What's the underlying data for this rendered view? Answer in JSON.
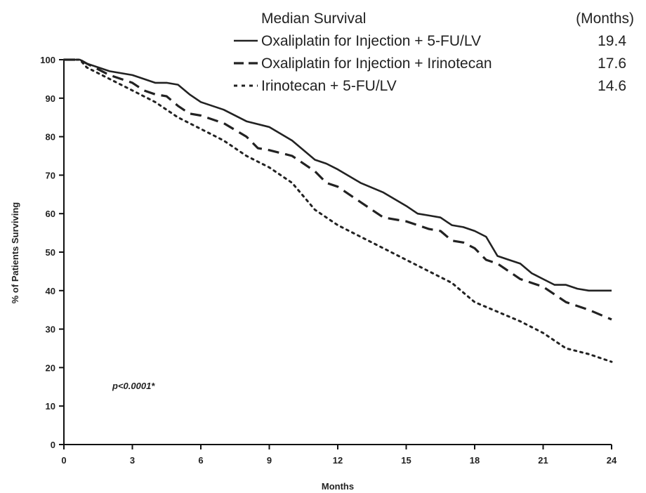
{
  "chart_data": {
    "type": "line",
    "xlabel": "Months",
    "ylabel": "% of Patients Surviving",
    "xlim": [
      0,
      24
    ],
    "ylim": [
      0,
      100
    ],
    "xticks": [
      0,
      3,
      6,
      9,
      12,
      15,
      18,
      21,
      24
    ],
    "yticks": [
      0,
      10,
      20,
      30,
      40,
      50,
      60,
      70,
      80,
      90,
      100
    ],
    "grid": false,
    "legend": {
      "title": "Median Survival",
      "value_header": "(Months)",
      "placement": "top-right"
    },
    "annotation": "p<0.0001*",
    "series": [
      {
        "name": "Oxaliplatin for Injection + 5-FU/LV",
        "median": "19.4",
        "style": "solid",
        "x": [
          0,
          0.7,
          1,
          2,
          3,
          3.5,
          4,
          4.5,
          5,
          5.5,
          6,
          7,
          8,
          9,
          10,
          11,
          11.5,
          12,
          13,
          14,
          15,
          15.5,
          16,
          16.5,
          17,
          17.5,
          18,
          18.5,
          19,
          19.5,
          20,
          20.5,
          21,
          21.5,
          22,
          22.5,
          23,
          23.5,
          24
        ],
        "y": [
          100,
          100,
          99,
          97,
          96,
          95,
          94,
          94,
          93.5,
          91,
          89,
          87,
          84,
          82.5,
          79,
          74,
          73,
          71.5,
          68,
          65.5,
          62,
          60,
          59.5,
          59,
          57,
          56.5,
          55.5,
          54,
          49,
          48,
          47,
          44.5,
          43,
          41.5,
          41.5,
          40.5,
          40,
          40,
          40
        ]
      },
      {
        "name": "Oxaliplatin for Injection + Irinotecan",
        "median": "17.6",
        "style": "dashed",
        "x": [
          0,
          0.7,
          1,
          2,
          3,
          3.5,
          4,
          4.5,
          5,
          5.5,
          6,
          7,
          8,
          8.5,
          9,
          10,
          11,
          11.5,
          12,
          13,
          14,
          15,
          15.5,
          16,
          16.5,
          17,
          17.5,
          18,
          18.5,
          19,
          19.5,
          20,
          21,
          22,
          23,
          24
        ],
        "y": [
          100,
          100,
          99,
          96,
          94,
          92,
          91,
          90.5,
          88,
          86,
          85.5,
          83.5,
          80,
          77,
          76.5,
          75,
          71,
          68,
          67,
          63,
          59,
          58,
          57,
          56,
          55.5,
          53,
          52.5,
          51,
          48,
          47,
          45,
          43,
          41,
          37,
          35,
          32.5
        ]
      },
      {
        "name": "Irinotecan + 5-FU/LV",
        "median": "14.6",
        "style": "dotted",
        "x": [
          0,
          0.7,
          1,
          2,
          3,
          4,
          5,
          6,
          7,
          8,
          9,
          10,
          11,
          12,
          13,
          14,
          15,
          16,
          17,
          18,
          19,
          20,
          21,
          22,
          23,
          24
        ],
        "y": [
          100,
          100,
          98,
          95,
          92,
          89,
          85,
          82,
          79,
          75,
          72,
          68,
          61,
          57,
          54,
          51,
          48,
          45,
          42,
          37,
          34.5,
          32,
          29,
          25,
          23.5,
          21.5
        ]
      }
    ]
  }
}
